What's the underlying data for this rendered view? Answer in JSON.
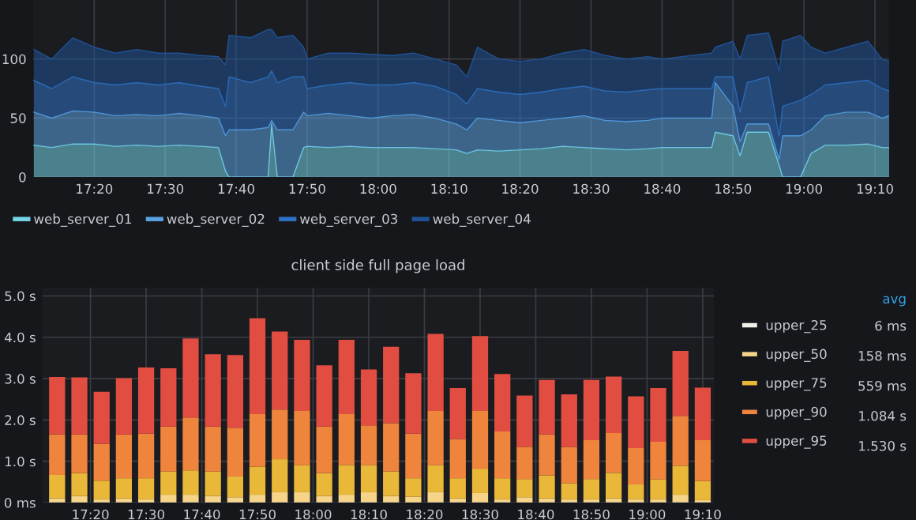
{
  "chart_data": [
    {
      "type": "area",
      "stacked": true,
      "legend": "bottom",
      "grid": true,
      "x": [
        17.1917,
        17.2333,
        17.2833,
        17.3333,
        17.3833,
        17.4333,
        17.4833,
        17.5333,
        17.5833,
        17.625,
        17.6417,
        17.65,
        17.7,
        17.7417,
        17.75,
        17.7633,
        17.8,
        17.825,
        17.8333,
        17.8833,
        17.9333,
        17.9833,
        18.0333,
        18.0833,
        18.1333,
        18.1833,
        18.2083,
        18.2333,
        18.2833,
        18.3333,
        18.3833,
        18.4333,
        18.4833,
        18.5333,
        18.5833,
        18.6333,
        18.6667,
        18.7833,
        18.7917,
        18.8333,
        18.85,
        18.8667,
        18.9167,
        18.9417,
        18.95,
        18.9917,
        19.0167,
        19.05,
        19.1,
        19.15,
        19.1833,
        19.2
      ],
      "xlim": [
        17.19,
        19.2
      ],
      "xticks": [
        {
          "value": 17.3333,
          "label": "17:20"
        },
        {
          "value": 17.5,
          "label": "17:30"
        },
        {
          "value": 17.6667,
          "label": "17:40"
        },
        {
          "value": 17.8333,
          "label": "17:50"
        },
        {
          "value": 18.0,
          "label": "18:00"
        },
        {
          "value": 18.1667,
          "label": "18:10"
        },
        {
          "value": 18.3333,
          "label": "18:20"
        },
        {
          "value": 18.5,
          "label": "18:30"
        },
        {
          "value": 18.6667,
          "label": "18:40"
        },
        {
          "value": 18.8333,
          "label": "18:50"
        },
        {
          "value": 19.0,
          "label": "19:00"
        },
        {
          "value": 19.1667,
          "label": "19:10"
        }
      ],
      "ylim": [
        0,
        150
      ],
      "yticks": [
        0,
        50,
        100
      ],
      "series": [
        {
          "name": "web_server_01",
          "color": "#73d6e6",
          "values": [
            27,
            25,
            28,
            28,
            26,
            27,
            26,
            27,
            26,
            25,
            5,
            0,
            0,
            0,
            45,
            0,
            0,
            25,
            26,
            25,
            26,
            25,
            25,
            25,
            24,
            23,
            20,
            23,
            22,
            23,
            24,
            26,
            25,
            24,
            23,
            24,
            25,
            25,
            38,
            35,
            18,
            38,
            38,
            10,
            0,
            0,
            20,
            27,
            27,
            28,
            25,
            25
          ]
        },
        {
          "name": "web_server_02",
          "color": "#5aa2e0",
          "values": [
            28,
            25,
            28,
            27,
            26,
            26,
            26,
            27,
            26,
            25,
            30,
            40,
            40,
            42,
            3,
            40,
            40,
            30,
            26,
            29,
            26,
            25,
            27,
            28,
            26,
            22,
            20,
            27,
            26,
            23,
            24,
            24,
            27,
            24,
            24,
            24,
            25,
            25,
            42,
            25,
            12,
            7,
            7,
            5,
            35,
            35,
            20,
            25,
            28,
            27,
            25,
            27
          ]
        },
        {
          "name": "web_server_03",
          "color": "#2f72c4",
          "values": [
            27,
            25,
            29,
            25,
            26,
            27,
            26,
            26,
            25,
            25,
            25,
            45,
            40,
            43,
            42,
            40,
            45,
            30,
            23,
            24,
            28,
            28,
            26,
            27,
            27,
            25,
            22,
            25,
            24,
            24,
            24,
            25,
            25,
            25,
            25,
            26,
            25,
            25,
            5,
            25,
            25,
            35,
            40,
            20,
            25,
            30,
            30,
            26,
            25,
            27,
            25,
            21
          ]
        },
        {
          "name": "web_server_04",
          "color": "#1f5296",
          "values": [
            26,
            25,
            33,
            30,
            27,
            28,
            27,
            25,
            26,
            27,
            35,
            35,
            38,
            40,
            35,
            38,
            35,
            25,
            25,
            27,
            25,
            26,
            25,
            25,
            23,
            25,
            23,
            35,
            28,
            28,
            28,
            30,
            31,
            30,
            28,
            28,
            25,
            30,
            25,
            30,
            45,
            40,
            37,
            55,
            55,
            55,
            40,
            27,
            30,
            33,
            25,
            25
          ]
        }
      ]
    },
    {
      "type": "bar",
      "stacked": true,
      "legend": "right",
      "grid": true,
      "title": "client side full page load",
      "x": [
        17.2333,
        17.3,
        17.3667,
        17.4333,
        17.5,
        17.5667,
        17.6333,
        17.7,
        17.7667,
        17.8333,
        17.9,
        17.9667,
        18.0333,
        18.1,
        18.1667,
        18.2333,
        18.3,
        18.3667,
        18.4333,
        18.5,
        18.5667,
        18.6333,
        18.7,
        18.7667,
        18.8333,
        18.9,
        18.9667,
        19.0333,
        19.1,
        19.1667
      ],
      "xlim": [
        17.19,
        19.2
      ],
      "xticks": [
        {
          "value": 17.3333,
          "label": "17:20"
        },
        {
          "value": 17.5,
          "label": "17:30"
        },
        {
          "value": 17.6667,
          "label": "17:40"
        },
        {
          "value": 17.8333,
          "label": "17:50"
        },
        {
          "value": 18.0,
          "label": "18:00"
        },
        {
          "value": 18.1667,
          "label": "18:10"
        },
        {
          "value": 18.3333,
          "label": "18:20"
        },
        {
          "value": 18.5,
          "label": "18:30"
        },
        {
          "value": 18.6667,
          "label": "18:40"
        },
        {
          "value": 18.8333,
          "label": "18:50"
        },
        {
          "value": 19.0,
          "label": "19:00"
        },
        {
          "value": 19.1667,
          "label": "19:10"
        }
      ],
      "ylim": [
        0,
        5.2
      ],
      "yticks": [
        {
          "value": 0,
          "label": "0 ms"
        },
        {
          "value": 1,
          "label": "1.0 s"
        },
        {
          "value": 2,
          "label": "2.0 s"
        },
        {
          "value": 3,
          "label": "3.0 s"
        },
        {
          "value": 4,
          "label": "4.0 s"
        },
        {
          "value": 5,
          "label": "5.0 s"
        }
      ],
      "annotations": [
        "avg",
        "6 ms",
        "158 ms",
        "559 ms",
        "1.084 s",
        "1.530 s"
      ],
      "series": [
        {
          "name": "upper_25",
          "color": "#f0eee6",
          "values": [
            0.01,
            0.01,
            0.01,
            0.01,
            0.01,
            0.01,
            0.01,
            0.01,
            0.01,
            0.01,
            0.01,
            0.01,
            0.01,
            0.01,
            0.01,
            0.01,
            0.01,
            0.01,
            0.01,
            0.01,
            0.01,
            0.01,
            0.01,
            0.01,
            0.01,
            0.01,
            0.01,
            0.01,
            0.01,
            0.01
          ]
        },
        {
          "name": "upper_50",
          "color": "#f6d58a",
          "values": [
            0.09,
            0.15,
            0.07,
            0.09,
            0.07,
            0.18,
            0.18,
            0.15,
            0.12,
            0.18,
            0.24,
            0.24,
            0.15,
            0.18,
            0.24,
            0.15,
            0.13,
            0.24,
            0.09,
            0.22,
            0.07,
            0.12,
            0.09,
            0.07,
            0.07,
            0.09,
            0.07,
            0.07,
            0.18,
            0.05
          ]
        },
        {
          "name": "upper_75",
          "color": "#eab839",
          "values": [
            0.57,
            0.55,
            0.45,
            0.49,
            0.51,
            0.56,
            0.59,
            0.59,
            0.5,
            0.68,
            0.8,
            0.66,
            0.55,
            0.72,
            0.66,
            0.59,
            0.45,
            0.66,
            0.49,
            0.59,
            0.51,
            0.44,
            0.56,
            0.39,
            0.49,
            0.62,
            0.36,
            0.48,
            0.7,
            0.46
          ]
        },
        {
          "name": "upper_90",
          "color": "#ef843c",
          "values": [
            0.98,
            0.94,
            0.89,
            1.06,
            1.08,
            1.09,
            1.28,
            1.09,
            1.18,
            1.27,
            1.2,
            1.31,
            1.13,
            1.23,
            0.96,
            1.17,
            1.08,
            1.31,
            0.95,
            1.4,
            1.13,
            0.78,
            0.99,
            0.88,
            0.94,
            0.96,
            0.88,
            0.91,
            1.21,
            0.99
          ]
        },
        {
          "name": "upper_95",
          "color": "#e24d42",
          "values": [
            1.39,
            1.38,
            1.26,
            1.36,
            1.6,
            1.41,
            1.91,
            1.75,
            1.76,
            2.32,
            1.89,
            1.72,
            1.48,
            1.8,
            1.35,
            1.85,
            1.46,
            1.86,
            1.23,
            1.81,
            1.39,
            1.24,
            1.32,
            1.27,
            1.46,
            1.37,
            1.25,
            1.3,
            1.57,
            1.27
          ]
        }
      ]
    }
  ]
}
